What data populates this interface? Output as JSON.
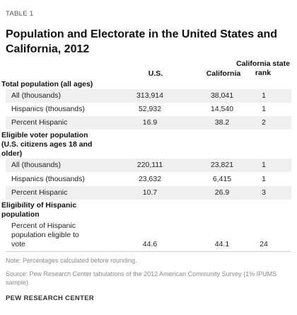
{
  "table_label": "TABLE 1",
  "title": "Population and Electorate in the United States and California, 2012",
  "headers": {
    "us": "U.S.",
    "california": "California",
    "rank": "California state rank"
  },
  "sections": [
    {
      "label": "Total population (all ages)",
      "rows": [
        {
          "label": "All (thousands)",
          "us": "313,914",
          "california": "38,041",
          "rank": "1"
        },
        {
          "label": "Hispanics (thousands)",
          "us": "52,932",
          "california": "14,540",
          "rank": "1"
        },
        {
          "label": "Percent Hispanic",
          "us": "16.9",
          "california": "38.2",
          "rank": "2"
        }
      ]
    },
    {
      "label": "Eligible voter population (U.S. citizens ages 18 and older)",
      "rows": [
        {
          "label": "All (thousands)",
          "us": "220,111",
          "california": "23,821",
          "rank": "1"
        },
        {
          "label": "Hispanics (thousands)",
          "us": "23,632",
          "california": "6,415",
          "rank": "1"
        },
        {
          "label": "Percent Hispanic",
          "us": "10.7",
          "california": "26.9",
          "rank": "3"
        }
      ]
    },
    {
      "label": "Eligibility of Hispanic population",
      "rows": [
        {
          "label": "Percent of Hispanic population eligible to vote",
          "us": "44.6",
          "california": "44.1",
          "rank": "24"
        }
      ]
    }
  ],
  "note": "Note: Percentages calculated before rounding.",
  "source": "Source: Pew Research Center tabulations of the 2012 American Community Survey (1% IPUMS sample)",
  "brand": "PEW RESEARCH CENTER"
}
